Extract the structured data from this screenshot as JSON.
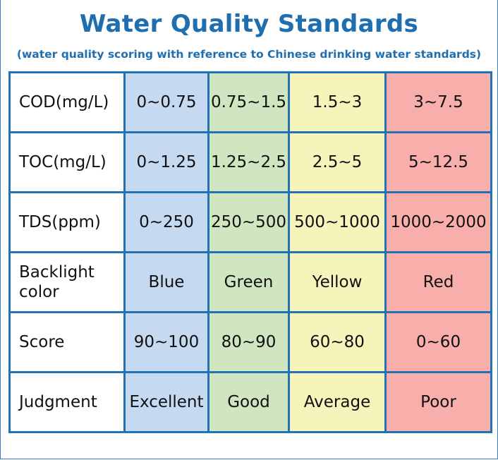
{
  "title": "Water Quality Standards",
  "subtitle": "(water quality scoring with reference to Chinese drinking water standards)",
  "colors": {
    "blue": "#c5d9f1",
    "green": "#d0e6c0",
    "yellow": "#f6f4bb",
    "red": "#f8aeab",
    "border": "#2273b5",
    "title": "#1f6eaf"
  },
  "rows": [
    {
      "label": "COD(mg/L)",
      "cells": [
        "0~0.75",
        "0.75~1.5",
        "1.5~3",
        "3~7.5"
      ]
    },
    {
      "label": "TOC(mg/L)",
      "cells": [
        "0~1.25",
        "1.25~2.5",
        "2.5~5",
        "5~12.5"
      ]
    },
    {
      "label": "TDS(ppm)",
      "cells": [
        "0~250",
        "250~500",
        "500~1000",
        "1000~2000"
      ]
    },
    {
      "label": "Backlight color",
      "cells": [
        "Blue",
        "Green",
        "Yellow",
        "Red"
      ]
    },
    {
      "label": "Score",
      "cells": [
        "90~100",
        "80~90",
        "60~80",
        "0~60"
      ]
    },
    {
      "label": "Judgment",
      "cells": [
        "Excellent",
        "Good",
        "Average",
        "Poor"
      ]
    }
  ]
}
